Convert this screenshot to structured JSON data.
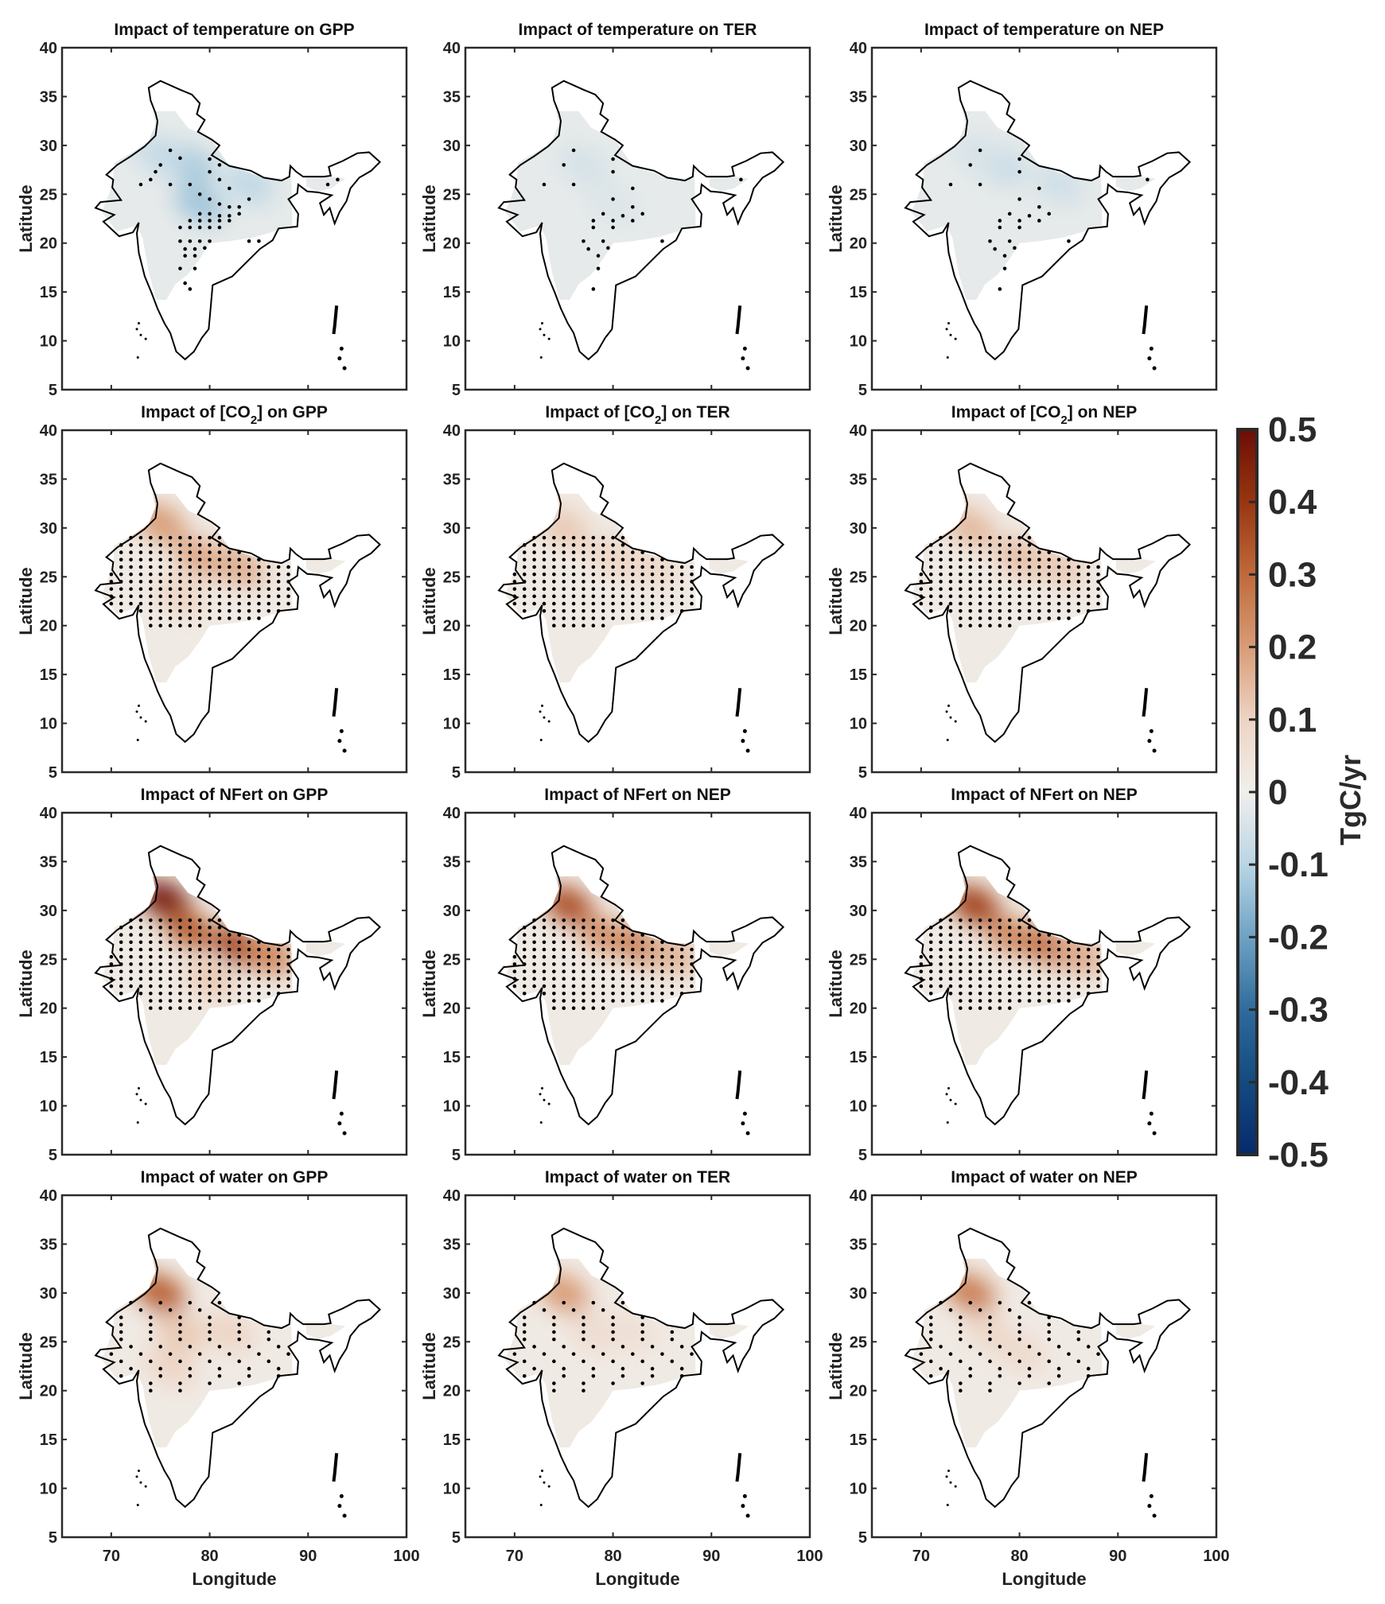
{
  "chart_data": {
    "type": "heatmap",
    "layout": "4x3 small multiples",
    "panels": [
      {
        "title": "Impact of temperature on GPP",
        "driver": "temperature",
        "variable": "GPP",
        "hotspots": [
          {
            "lon": 78,
            "lat": 28,
            "value": -0.12
          },
          {
            "lon": 79,
            "lat": 24,
            "value": -0.13
          },
          {
            "lon": 84,
            "lat": 26,
            "value": -0.09
          },
          {
            "lon": 75,
            "lat": 29,
            "value": -0.08
          }
        ]
      },
      {
        "title": "Impact of temperature on TER",
        "driver": "temperature",
        "variable": "TER",
        "hotspots": [
          {
            "lon": 77,
            "lat": 28,
            "value": -0.05
          },
          {
            "lon": 80,
            "lat": 24,
            "value": -0.04
          }
        ]
      },
      {
        "title": "Impact of temperature on NEP",
        "driver": "temperature",
        "variable": "NEP",
        "hotspots": [
          {
            "lon": 78,
            "lat": 28,
            "value": -0.08
          },
          {
            "lon": 84,
            "lat": 26,
            "value": -0.06
          },
          {
            "lon": 76,
            "lat": 29,
            "value": -0.05
          }
        ]
      },
      {
        "title": "Impact of [CO2] on GPP",
        "title_parts": [
          "Impact of [CO",
          "2",
          "] on GPP"
        ],
        "driver": "CO2",
        "variable": "GPP",
        "hotspots": [
          {
            "lon": 75,
            "lat": 30.5,
            "value": 0.2
          },
          {
            "lon": 79,
            "lat": 27,
            "value": 0.18
          },
          {
            "lon": 83,
            "lat": 26,
            "value": 0.17
          },
          {
            "lon": 77,
            "lat": 23,
            "value": 0.1
          }
        ]
      },
      {
        "title": "Impact of [CO2] on TER",
        "title_parts": [
          "Impact of [CO",
          "2",
          "] on TER"
        ],
        "driver": "CO2",
        "variable": "TER",
        "hotspots": [
          {
            "lon": 75,
            "lat": 30,
            "value": 0.12
          },
          {
            "lon": 80,
            "lat": 27,
            "value": 0.1
          },
          {
            "lon": 84,
            "lat": 26,
            "value": 0.09
          }
        ]
      },
      {
        "title": "Impact of [CO2] on NEP",
        "title_parts": [
          "Impact of [CO",
          "2",
          "] on NEP"
        ],
        "driver": "CO2",
        "variable": "NEP",
        "hotspots": [
          {
            "lon": 75,
            "lat": 30,
            "value": 0.15
          },
          {
            "lon": 80,
            "lat": 27,
            "value": 0.14
          },
          {
            "lon": 84,
            "lat": 26,
            "value": 0.12
          }
        ]
      },
      {
        "title": "Impact of NFert on GPP",
        "driver": "NFert",
        "variable": "GPP",
        "hotspots": [
          {
            "lon": 75.5,
            "lat": 31,
            "value": 0.48
          },
          {
            "lon": 78,
            "lat": 28,
            "value": 0.32
          },
          {
            "lon": 83,
            "lat": 26.3,
            "value": 0.38
          },
          {
            "lon": 86,
            "lat": 25.5,
            "value": 0.25
          },
          {
            "lon": 80,
            "lat": 23,
            "value": 0.12
          }
        ]
      },
      {
        "title": "Impact of NFert on NEP",
        "driver": "NFert",
        "variable": "NEP",
        "hotspots": [
          {
            "lon": 75.5,
            "lat": 30.5,
            "value": 0.35
          },
          {
            "lon": 79,
            "lat": 27.5,
            "value": 0.22
          },
          {
            "lon": 83,
            "lat": 26.3,
            "value": 0.26
          },
          {
            "lon": 86,
            "lat": 25.5,
            "value": 0.16
          }
        ]
      },
      {
        "title": "Impact of NFert on NEP",
        "driver": "NFert",
        "variable": "NEP",
        "hotspots": [
          {
            "lon": 75.5,
            "lat": 30.5,
            "value": 0.38
          },
          {
            "lon": 79,
            "lat": 27.5,
            "value": 0.24
          },
          {
            "lon": 83,
            "lat": 26.3,
            "value": 0.3
          },
          {
            "lon": 86,
            "lat": 25.5,
            "value": 0.18
          }
        ]
      },
      {
        "title": "Impact of water on GPP",
        "driver": "water",
        "variable": "GPP",
        "hotspots": [
          {
            "lon": 75,
            "lat": 30,
            "value": 0.32
          },
          {
            "lon": 77,
            "lat": 26,
            "value": 0.12
          },
          {
            "lon": 82,
            "lat": 26,
            "value": 0.1
          },
          {
            "lon": 76,
            "lat": 22.5,
            "value": 0.1
          }
        ]
      },
      {
        "title": "Impact of water on TER",
        "driver": "water",
        "variable": "TER",
        "hotspots": [
          {
            "lon": 75,
            "lat": 30,
            "value": 0.2
          },
          {
            "lon": 78,
            "lat": 26,
            "value": 0.07
          },
          {
            "lon": 82,
            "lat": 26,
            "value": 0.06
          }
        ]
      },
      {
        "title": "Impact of water on NEP",
        "driver": "water",
        "variable": "NEP",
        "hotspots": [
          {
            "lon": 75,
            "lat": 30,
            "value": 0.26
          },
          {
            "lon": 77,
            "lat": 26,
            "value": 0.09
          },
          {
            "lon": 80,
            "lat": 24,
            "value": 0.08
          }
        ]
      }
    ],
    "xlabel": "Longitude",
    "ylabel": "Latitude",
    "xlim": [
      65,
      100
    ],
    "ylim": [
      5,
      40
    ],
    "xticks": [
      70,
      80,
      90,
      100
    ],
    "yticks": [
      5,
      10,
      15,
      20,
      25,
      30,
      35,
      40
    ],
    "stippling": "black dots mark statistically significant grid cells",
    "colorbar": {
      "label": "TgC/yr",
      "range": [
        -0.5,
        0.5
      ],
      "ticks": [
        "0.5",
        "0.4",
        "0.3",
        "0.2",
        "0.1",
        "0",
        "-0.1",
        "-0.2",
        "-0.3",
        "-0.4",
        "-0.5"
      ],
      "positive_color": "#6b0d07",
      "mid_color": "#f1efec",
      "negative_color": "#072a6c",
      "placement": "right"
    },
    "grid": false
  }
}
